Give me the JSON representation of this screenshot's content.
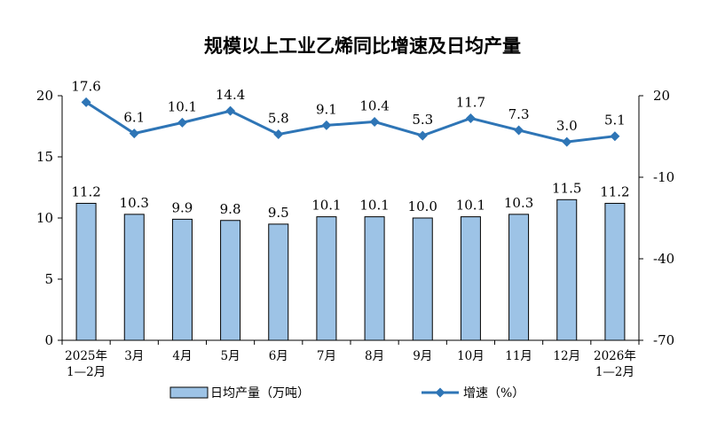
{
  "chart_data": {
    "type": "bar+line",
    "title": "规模以上工业乙烯同比增速及日均产量",
    "categories": [
      [
        "2025年",
        "1—2月"
      ],
      [
        "3月"
      ],
      [
        "4月"
      ],
      [
        "5月"
      ],
      [
        "6月"
      ],
      [
        "7月"
      ],
      [
        "8月"
      ],
      [
        "9月"
      ],
      [
        "10月"
      ],
      [
        "11月"
      ],
      [
        "12月"
      ],
      [
        "2026年",
        "1—2月"
      ]
    ],
    "series": [
      {
        "name": "日均产量（万吨）",
        "type": "bar",
        "axis": "left",
        "values": [
          11.2,
          10.3,
          9.9,
          9.8,
          9.5,
          10.1,
          10.1,
          10.0,
          10.1,
          10.3,
          11.5,
          11.2
        ],
        "labels": [
          "11.2",
          "10.3",
          "9.9",
          "9.8",
          "9.5",
          "10.1",
          "10.1",
          "10.0",
          "10.1",
          "10.3",
          "11.5",
          "11.2"
        ],
        "color": "#9dc3e6",
        "border": "#000000"
      },
      {
        "name": "增速（%）",
        "type": "line",
        "axis": "right",
        "values": [
          17.6,
          6.1,
          10.1,
          14.4,
          5.8,
          9.1,
          10.4,
          5.3,
          11.7,
          7.3,
          3.0,
          5.1
        ],
        "labels": [
          "17.6",
          "6.1",
          "10.1",
          "14.4",
          "5.8",
          "9.1",
          "10.4",
          "5.3",
          "11.7",
          "7.3",
          "3.0",
          "5.1"
        ],
        "color": "#2e75b6"
      }
    ],
    "left_axis": {
      "min": 0,
      "max": 20,
      "ticks": [
        "0",
        "5",
        "10",
        "15",
        "20"
      ]
    },
    "right_axis": {
      "min": -70,
      "max": 20,
      "ticks": [
        "-70",
        "-40",
        "-10",
        "20"
      ]
    },
    "legend": {
      "placement": "bottom"
    },
    "grid": false
  }
}
